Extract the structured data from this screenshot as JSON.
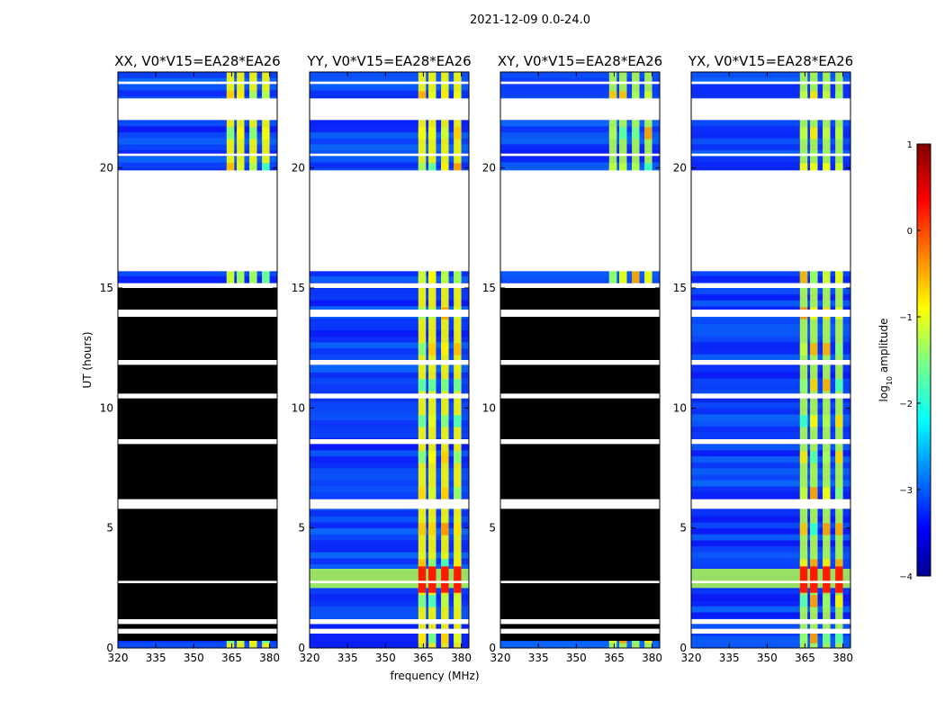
{
  "figure": {
    "suptitle": "2021-12-09 0.0-24.0"
  },
  "chart_data": {
    "type": "heatmap",
    "description_series": "dynamic spectra (frequency vs UT) for four polarization products",
    "xlabel": "frequency (MHz)",
    "ylabel": "UT (hours)",
    "xlim": [
      320,
      383
    ],
    "ylim": [
      0,
      24
    ],
    "xticks": [
      320,
      335,
      350,
      365,
      380
    ],
    "xtick_labels": [
      "320",
      "335",
      "350",
      "365",
      "380"
    ],
    "yticks": [
      0,
      5,
      10,
      15,
      20
    ],
    "ytick_labels": [
      "0",
      "5",
      "10",
      "15",
      "20"
    ],
    "panels": [
      {
        "title": "XX, V0*V15=EA28*EA26",
        "pol": "XX",
        "blanked_hours": [
          [
            0.3,
            15.0
          ]
        ]
      },
      {
        "title": "YY, V0*V15=EA28*EA26",
        "pol": "YY",
        "blanked_hours": []
      },
      {
        "title": "XY, V0*V15=EA28*EA26",
        "pol": "XY",
        "blanked_hours": [
          [
            0.3,
            15.0
          ]
        ]
      },
      {
        "title": "YX, V0*V15=EA28*EA26",
        "pol": "YX",
        "blanked_hours": []
      }
    ],
    "no_data_hours": [
      [
        15.7,
        19.9
      ],
      [
        22.0,
        22.9
      ]
    ],
    "rfi_band_mhz": [
      360,
      380
    ],
    "colorbar": {
      "label": "log10 amplitude",
      "label_prefix": "log",
      "label_sub": "10",
      "label_suffix": " amplitude",
      "range": [
        -4,
        1
      ],
      "ticks": [
        1,
        0,
        -1,
        -2,
        -3,
        -4
      ],
      "tick_labels": [
        "1",
        "0",
        "−1",
        "−2",
        "−3",
        "−4"
      ],
      "colormap": "jet"
    }
  },
  "colors": {
    "background": "#ffffff",
    "blank": "#000000",
    "low": "#00008f",
    "high": "#800000"
  }
}
